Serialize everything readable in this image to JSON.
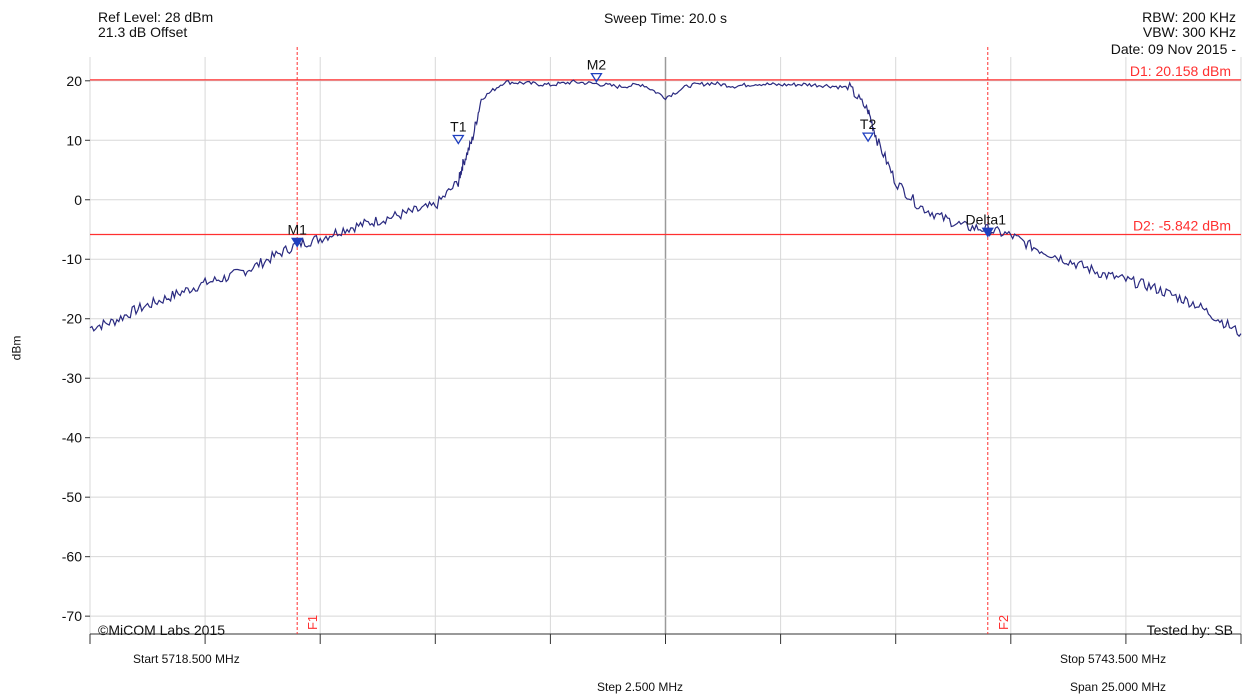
{
  "header": {
    "ref_level": "Ref Level: 28 dBm",
    "offset": "21.3 dB Offset",
    "sweep_time": "Sweep Time: 20.0 s",
    "rbw": "RBW: 200 KHz",
    "vbw": "VBW: 300 KHz",
    "date": "Date: 09 Nov 2015 -"
  },
  "footer": {
    "start": "Start 5718.500 MHz",
    "stop": "Stop 5743.500 MHz",
    "step": "Step 2.500 MHz",
    "span": "Span 25.000 MHz",
    "copyright": "©MiCOM Labs 2015",
    "tested_by": "Tested by: SB"
  },
  "colors": {
    "trace": "#2a2a80",
    "marker": "#ff3030",
    "grid": "#d8d8d8",
    "axis": "#9a9a9a",
    "marker_symbol": "#1f3fbf"
  },
  "chart_data": {
    "type": "line",
    "xlim": [
      5718.5,
      5743.5
    ],
    "ylim": [
      -73,
      24
    ],
    "x_unit": "MHz",
    "ylabel": "dBm",
    "y_ticks": [
      20,
      10,
      0,
      -10,
      -20,
      -30,
      -40,
      -50,
      -60,
      -70
    ],
    "grid": true,
    "series": [
      {
        "x": [
          5718.5,
          5719.0,
          5719.5,
          5720.0,
          5720.5,
          5721.0,
          5721.5,
          5722.0,
          5722.5,
          5723.0,
          5723.5,
          5724.0,
          5724.5,
          5725.0,
          5725.5,
          5726.0,
          5726.5,
          5726.6,
          5726.8,
          5727.0,
          5727.5,
          5728.0,
          5728.5,
          5729.0,
          5729.5,
          5730.0,
          5730.5,
          5731.0,
          5731.5,
          5732.0,
          5732.5,
          5733.0,
          5733.5,
          5734.0,
          5734.5,
          5735.0,
          5735.4,
          5735.6,
          5736.0,
          5736.5,
          5737.0,
          5737.5,
          5738.0,
          5738.5,
          5739.0,
          5739.5,
          5740.0,
          5740.5,
          5741.0,
          5741.5,
          5742.0,
          5742.5,
          5743.0,
          5743.5
        ],
        "y": [
          -21.5,
          -20.5,
          -18.5,
          -17.0,
          -15.5,
          -14.0,
          -13.0,
          -11.5,
          -9.5,
          -7.5,
          -6.5,
          -5.0,
          -4.0,
          -3.0,
          -2.0,
          -1.0,
          3.0,
          6.0,
          10.0,
          17.0,
          19.8,
          19.6,
          19.3,
          19.8,
          19.5,
          19.0,
          19.4,
          17.2,
          19.2,
          19.6,
          19.1,
          19.5,
          19.3,
          19.4,
          19.2,
          18.8,
          15.0,
          10.0,
          3.0,
          -1.0,
          -3.0,
          -4.5,
          -5.0,
          -6.0,
          -8.0,
          -9.5,
          -11.0,
          -12.5,
          -13.5,
          -14.5,
          -16.0,
          -17.5,
          -20.0,
          -22.5
        ]
      }
    ],
    "markers": [
      {
        "label": "M1",
        "x": 5723.0,
        "y": -7.5,
        "filled": true
      },
      {
        "label": "M2",
        "x": 5729.5,
        "y": 20.2,
        "filled": false
      },
      {
        "label": "T1",
        "x": 5726.5,
        "y": 9.8,
        "filled": false
      },
      {
        "label": "T2",
        "x": 5735.4,
        "y": 10.2,
        "filled": false
      },
      {
        "label": "Delta1",
        "x": 5738.0,
        "y": -5.8,
        "filled": true
      }
    ],
    "display_lines": [
      {
        "label": "D1: 20.158 dBm",
        "y": 20.158
      },
      {
        "label": "D2: -5.842 dBm",
        "y": -5.842
      }
    ],
    "freq_lines": [
      {
        "label": "F1",
        "x": 5723.0
      },
      {
        "label": "F2",
        "x": 5738.0
      }
    ]
  }
}
